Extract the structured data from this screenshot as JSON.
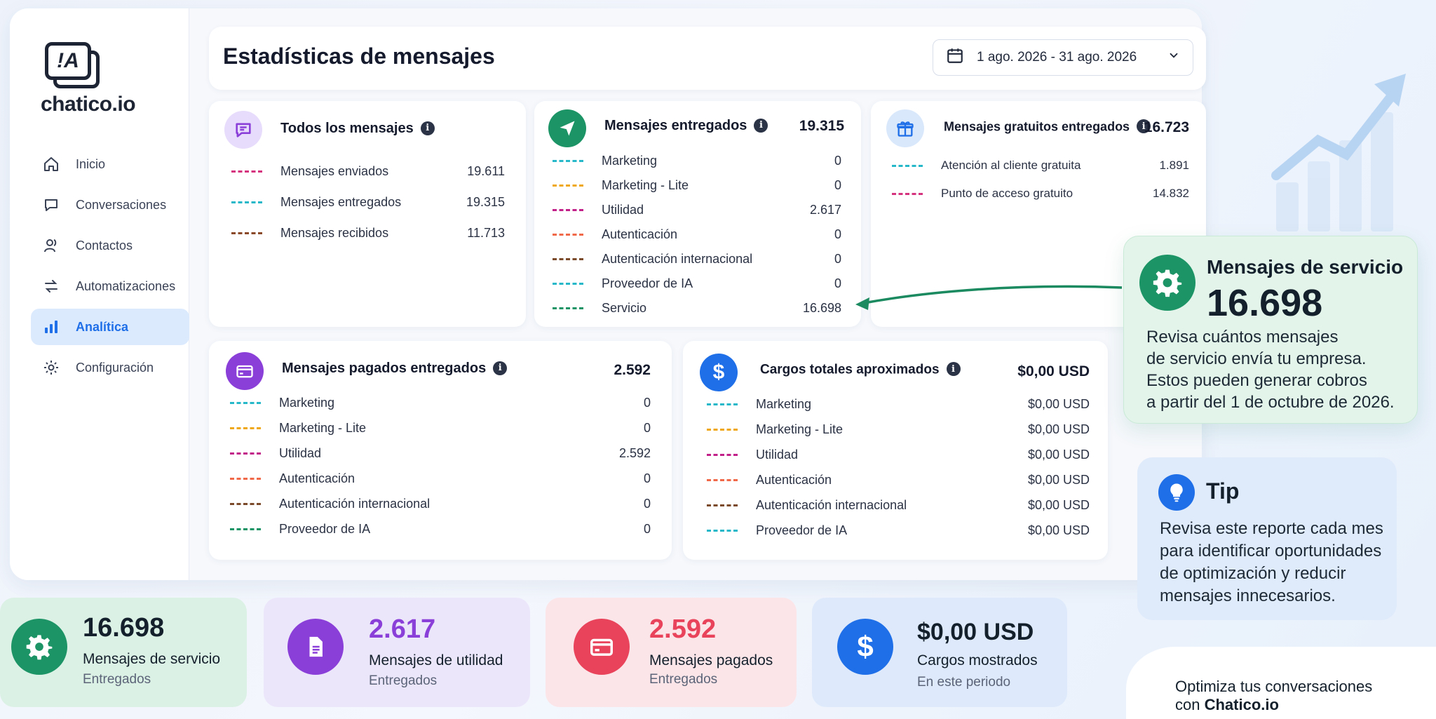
{
  "app": {
    "logo_text": "chatico.io",
    "logo_glyph": "!A"
  },
  "sidebar": {
    "items": [
      {
        "label": "Inicio",
        "icon": "home-icon",
        "active": false
      },
      {
        "label": "Conversaciones",
        "icon": "chat-icon",
        "active": false
      },
      {
        "label": "Contactos",
        "icon": "contacts-icon",
        "active": false
      },
      {
        "label": "Automatizaciones",
        "icon": "automation-icon",
        "active": false
      },
      {
        "label": "Analítica",
        "icon": "analytics-icon",
        "active": true
      },
      {
        "label": "Configuración",
        "icon": "gear-icon",
        "active": false
      }
    ]
  },
  "header": {
    "title": "Estadísticas de mensajes",
    "date_range": "1 ago. 2026 - 31 ago. 2026"
  },
  "cards": {
    "todos": {
      "title": "Todos los mensajes",
      "rows": [
        {
          "label": "Mensajes enviados",
          "value": "19.611",
          "color": "#d6337f"
        },
        {
          "label": "Mensajes entregados",
          "value": "19.315",
          "color": "#27b9c9"
        },
        {
          "label": "Mensajes recibidos",
          "value": "11.713",
          "color": "#8a4a2a"
        }
      ]
    },
    "entregados": {
      "title": "Mensajes entregados",
      "total": "19.315",
      "rows": [
        {
          "label": "Marketing",
          "value": "0",
          "color": "#27b9c9"
        },
        {
          "label": "Marketing - Lite",
          "value": "0",
          "color": "#f0a81b"
        },
        {
          "label": "Utilidad",
          "value": "2.617",
          "color": "#c2218a"
        },
        {
          "label": "Autenticación",
          "value": "0",
          "color": "#f06a4a"
        },
        {
          "label": "Autenticación internacional",
          "value": "0",
          "color": "#7a4a2a"
        },
        {
          "label": "Proveedor de IA",
          "value": "0",
          "color": "#27b9c9"
        },
        {
          "label": "Servicio",
          "value": "16.698",
          "color": "#1c9466"
        }
      ]
    },
    "gratuitos": {
      "title": "Mensajes gratuitos entregados",
      "total": "16.723",
      "rows": [
        {
          "label": "Atención al cliente gratuita",
          "value": "1.891",
          "color": "#27b9c9"
        },
        {
          "label": "Punto de acceso gratuito",
          "value": "14.832",
          "color": "#d6337f"
        }
      ]
    },
    "pagados": {
      "title": "Mensajes pagados entregados",
      "total": "2.592",
      "rows": [
        {
          "label": "Marketing",
          "value": "0",
          "color": "#27b9c9"
        },
        {
          "label": "Marketing - Lite",
          "value": "0",
          "color": "#f0a81b"
        },
        {
          "label": "Utilidad",
          "value": "2.592",
          "color": "#c2218a"
        },
        {
          "label": "Autenticación",
          "value": "0",
          "color": "#f06a4a"
        },
        {
          "label": "Autenticación internacional",
          "value": "0",
          "color": "#7a4a2a"
        },
        {
          "label": "Proveedor de IA",
          "value": "0",
          "color": "#1c9466"
        }
      ]
    },
    "cargos": {
      "title": "Cargos totales aproximados",
      "total": "$0,00 USD",
      "rows": [
        {
          "label": "Marketing",
          "value": "$0,00 USD",
          "color": "#27b9c9"
        },
        {
          "label": "Marketing - Lite",
          "value": "$0,00 USD",
          "color": "#f0a81b"
        },
        {
          "label": "Utilidad",
          "value": "$0,00 USD",
          "color": "#c2218a"
        },
        {
          "label": "Autenticación",
          "value": "$0,00 USD",
          "color": "#f06a4a"
        },
        {
          "label": "Autenticación internacional",
          "value": "$0,00 USD",
          "color": "#7a4a2a"
        },
        {
          "label": "Proveedor de IA",
          "value": "$0,00 USD",
          "color": "#27b9c9"
        }
      ]
    }
  },
  "callout": {
    "title": "Mensajes de servicio",
    "value": "16.698",
    "text_lines": [
      "Revisa cuántos mensajes",
      "de servicio envía tu empresa.",
      "Estos pueden generar cobros",
      "a partir del 1 de octubre de 2026."
    ]
  },
  "tip": {
    "title": "Tip",
    "text": "Revisa este reporte cada mes para identificar oportunidades de optimización y reducir mensajes innecesarios."
  },
  "stats": [
    {
      "value": "16.698",
      "label": "Mensajes de servicio",
      "sub": "Entregados",
      "accent": "#1c9466"
    },
    {
      "value": "2.617",
      "label": "Mensajes de utilidad",
      "sub": "Entregados",
      "accent": "#8b3fd9"
    },
    {
      "value": "2.592",
      "label": "Mensajes pagados",
      "sub": "Entregados",
      "accent": "#e8435a"
    },
    {
      "value": "$0,00 USD",
      "label": "Cargos mostrados",
      "sub": "En este periodo",
      "accent": "#1f6fe8"
    }
  ],
  "promo": {
    "line1": "Optimiza tus conversaciones",
    "line2_prefix": "con ",
    "line2_brand": "Chatico.io"
  },
  "colors": {
    "brand_blue": "#1f6fe8",
    "service_green": "#1c9466",
    "utility_purple": "#8b3fd9",
    "paid_red": "#e8435a"
  }
}
